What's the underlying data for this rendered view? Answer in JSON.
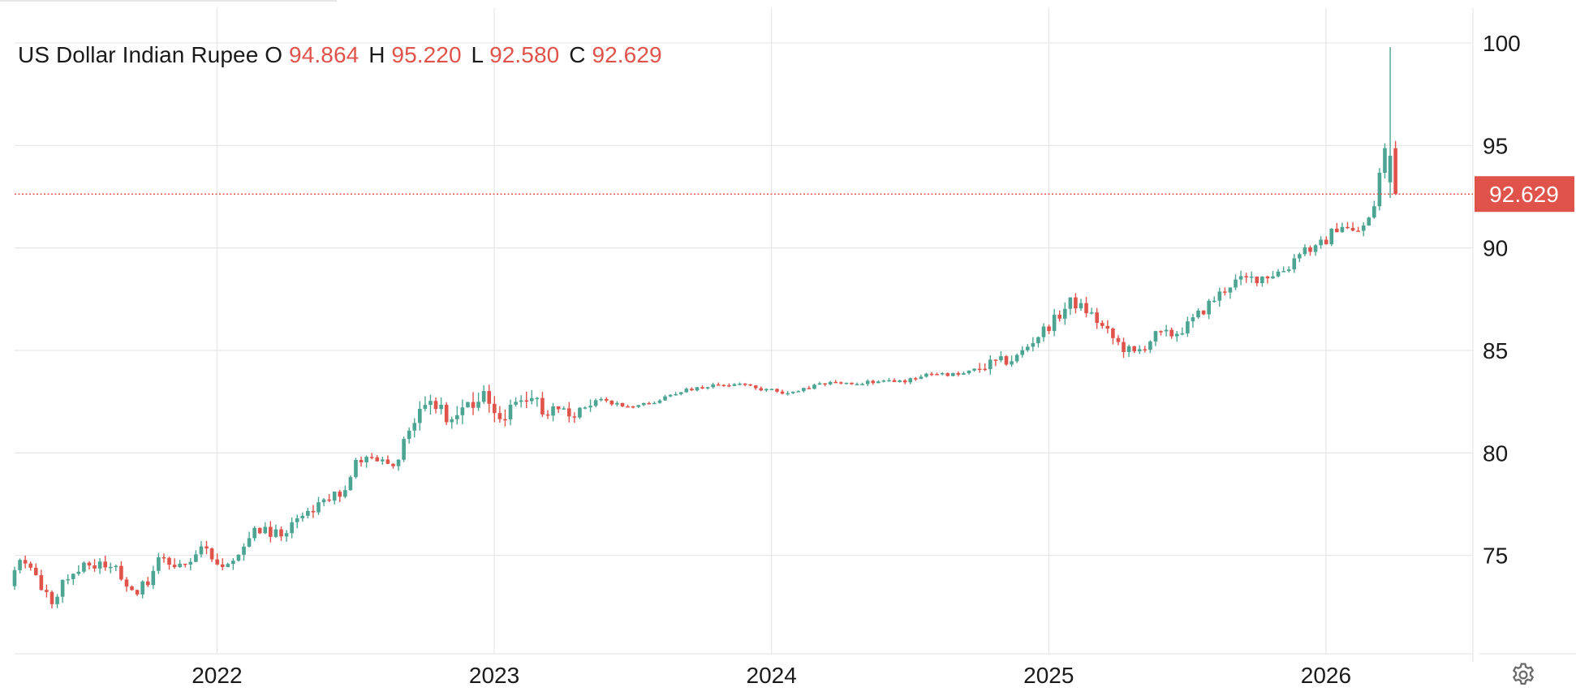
{
  "header": {
    "title": "US Dollar Indian Rupee",
    "o_label": "O",
    "o_value": "94.864",
    "h_label": "H",
    "h_value": "95.220",
    "l_label": "L",
    "l_value": "92.580",
    "c_label": "C",
    "c_value": "92.629"
  },
  "colors": {
    "up": "#4ca593",
    "down": "#e0534a",
    "grid": "#e6e6e6",
    "text": "#1a1a1a"
  },
  "icons": {
    "settings": "gear-icon"
  },
  "chart_data": {
    "type": "candlestick",
    "title": "US Dollar Indian Rupee",
    "x_range": [
      2021.27,
      2026.53
    ],
    "y_range": [
      70.2,
      101.7
    ],
    "y_ticks": [
      75,
      80,
      85,
      90,
      95,
      100
    ],
    "x_ticks": [
      {
        "value": 2022,
        "label": "2022"
      },
      {
        "value": 2023,
        "label": "2023"
      },
      {
        "value": 2024,
        "label": "2024"
      },
      {
        "value": 2025,
        "label": "2025"
      },
      {
        "value": 2026,
        "label": "2026"
      }
    ],
    "last_price": 92.629,
    "last_price_label": "92.629",
    "grid": true,
    "anchors": [
      [
        2021.27,
        73.5
      ],
      [
        2021.32,
        75.0
      ],
      [
        2021.4,
        73.0
      ],
      [
        2021.43,
        72.8
      ],
      [
        2021.47,
        74.0
      ],
      [
        2021.55,
        74.6
      ],
      [
        2021.65,
        74.3
      ],
      [
        2021.72,
        73.3
      ],
      [
        2021.77,
        73.6
      ],
      [
        2021.82,
        75.0
      ],
      [
        2021.87,
        74.3
      ],
      [
        2021.97,
        75.4
      ],
      [
        2022.03,
        74.4
      ],
      [
        2022.1,
        75.0
      ],
      [
        2022.15,
        76.3
      ],
      [
        2022.22,
        76.0
      ],
      [
        2022.3,
        76.5
      ],
      [
        2022.4,
        77.6
      ],
      [
        2022.47,
        78.0
      ],
      [
        2022.53,
        79.7
      ],
      [
        2022.6,
        79.6
      ],
      [
        2022.67,
        79.6
      ],
      [
        2022.72,
        81.6
      ],
      [
        2022.78,
        82.6
      ],
      [
        2022.85,
        81.7
      ],
      [
        2022.9,
        81.7
      ],
      [
        2022.95,
        82.6
      ],
      [
        2023.0,
        82.6
      ],
      [
        2023.05,
        81.6
      ],
      [
        2023.1,
        82.8
      ],
      [
        2023.2,
        82.2
      ],
      [
        2023.3,
        81.9
      ],
      [
        2023.4,
        82.6
      ],
      [
        2023.5,
        82.2
      ],
      [
        2023.6,
        82.5
      ],
      [
        2023.7,
        83.0
      ],
      [
        2023.8,
        83.3
      ],
      [
        2023.9,
        83.3
      ],
      [
        2024.0,
        83.1
      ],
      [
        2024.1,
        82.9
      ],
      [
        2024.2,
        83.4
      ],
      [
        2024.3,
        83.4
      ],
      [
        2024.4,
        83.5
      ],
      [
        2024.5,
        83.5
      ],
      [
        2024.6,
        83.9
      ],
      [
        2024.7,
        83.8
      ],
      [
        2024.8,
        84.3
      ],
      [
        2024.9,
        84.6
      ],
      [
        2024.97,
        85.6
      ],
      [
        2025.05,
        86.6
      ],
      [
        2025.1,
        87.4
      ],
      [
        2025.17,
        86.8
      ],
      [
        2025.22,
        86.0
      ],
      [
        2025.28,
        85.2
      ],
      [
        2025.33,
        84.8
      ],
      [
        2025.4,
        85.7
      ],
      [
        2025.47,
        85.8
      ],
      [
        2025.52,
        86.2
      ],
      [
        2025.6,
        87.3
      ],
      [
        2025.68,
        88.3
      ],
      [
        2025.75,
        88.5
      ],
      [
        2025.82,
        88.7
      ],
      [
        2025.88,
        89.0
      ],
      [
        2025.93,
        90.0
      ],
      [
        2025.98,
        89.9
      ],
      [
        2026.02,
        90.4
      ],
      [
        2026.07,
        91.2
      ],
      [
        2026.12,
        90.7
      ],
      [
        2026.17,
        91.2
      ],
      [
        2026.2,
        92.4
      ],
      [
        2026.22,
        94.4
      ],
      [
        2026.235,
        94.9
      ],
      [
        2026.245,
        92.6
      ]
    ]
  }
}
